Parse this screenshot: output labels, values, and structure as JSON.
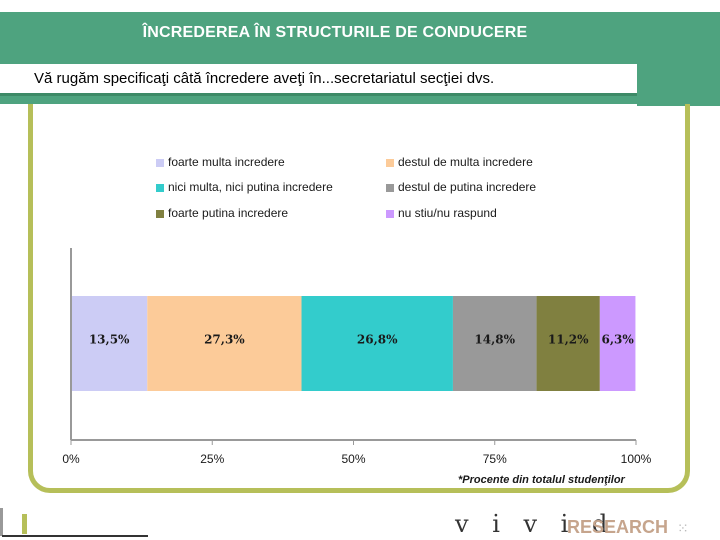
{
  "slide": {
    "title": "ÎNCREDEREA ÎN STRUCTURILE DE CONDUCERE",
    "subtitle": "Vă rugăm specificaţi câtă încredere aveţi în...secretariatul secţiei dvs.",
    "footnote": "*Procente din totalul studenţilor",
    "logo_text": "v i v i d",
    "logo_suffix": "RESEARCH",
    "logo_dots": "⁙"
  },
  "colors": {
    "header": "#4ea37f",
    "frame": "#b6bf59"
  },
  "chart_data": {
    "type": "bar",
    "orientation": "horizontal-stacked-100",
    "categories": [
      ""
    ],
    "series": [
      {
        "name": "foarte multa incredere",
        "values": [
          13.5
        ],
        "label": "13,5%",
        "color": "#ccccf5"
      },
      {
        "name": "destul de multa incredere",
        "values": [
          27.3
        ],
        "label": "27,3%",
        "color": "#fccb99"
      },
      {
        "name": "nici multa, nici putina incredere",
        "values": [
          26.8
        ],
        "label": "26,8%",
        "color": "#33cccc"
      },
      {
        "name": "destul de putina incredere",
        "values": [
          14.8
        ],
        "label": "14,8%",
        "color": "#999999"
      },
      {
        "name": "foarte putina incredere",
        "values": [
          11.2
        ],
        "label": "11,2%",
        "color": "#808040"
      },
      {
        "name": "nu stiu/nu raspund",
        "values": [
          6.3
        ],
        "label": "6,3%",
        "color": "#cc99ff"
      }
    ],
    "x_ticks": [
      "0%",
      "25%",
      "50%",
      "75%",
      "100%"
    ],
    "xlim": [
      0,
      100
    ],
    "legend_placement": "top",
    "grid": false
  }
}
